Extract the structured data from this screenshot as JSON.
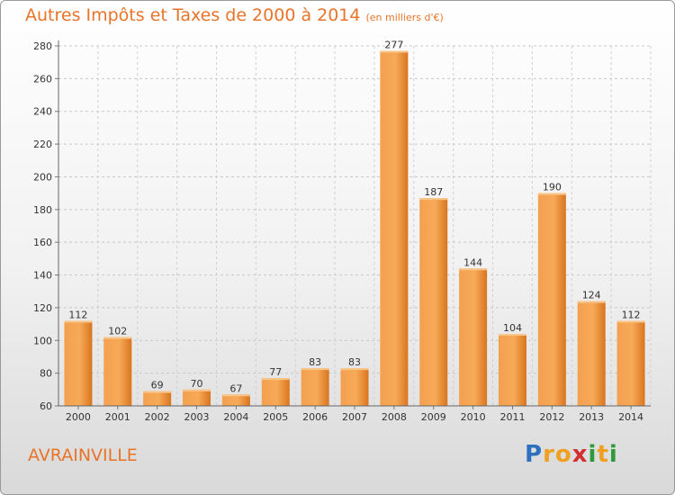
{
  "title": "Autres Impôts et Taxes de 2000 à 2014",
  "unit_note": "(en milliers d'€)",
  "commune": "AVRAINVILLE",
  "brand": {
    "letters": [
      "P",
      "r",
      "o",
      "x",
      "i",
      "t",
      "i"
    ],
    "colors": [
      "#2f6fc0",
      "#f0a020",
      "#f0a020",
      "#d03030",
      "#2f9a3a",
      "#f0a020",
      "#2f9a3a"
    ]
  },
  "colors": {
    "accent": "#e8742a",
    "bar_light": "#f7a653",
    "bar_dark": "#d9751f"
  },
  "chart_data": {
    "type": "bar",
    "categories": [
      "2000",
      "2001",
      "2002",
      "2003",
      "2004",
      "2005",
      "2006",
      "2007",
      "2008",
      "2009",
      "2010",
      "2011",
      "2012",
      "2013",
      "2014"
    ],
    "values": [
      112,
      102,
      69,
      70,
      67,
      77,
      83,
      83,
      277,
      187,
      144,
      104,
      190,
      124,
      112
    ],
    "ylim": [
      60,
      280
    ],
    "yticks": [
      60,
      80,
      100,
      120,
      140,
      160,
      180,
      200,
      220,
      240,
      260,
      280
    ],
    "grid": true,
    "legend": "none"
  }
}
